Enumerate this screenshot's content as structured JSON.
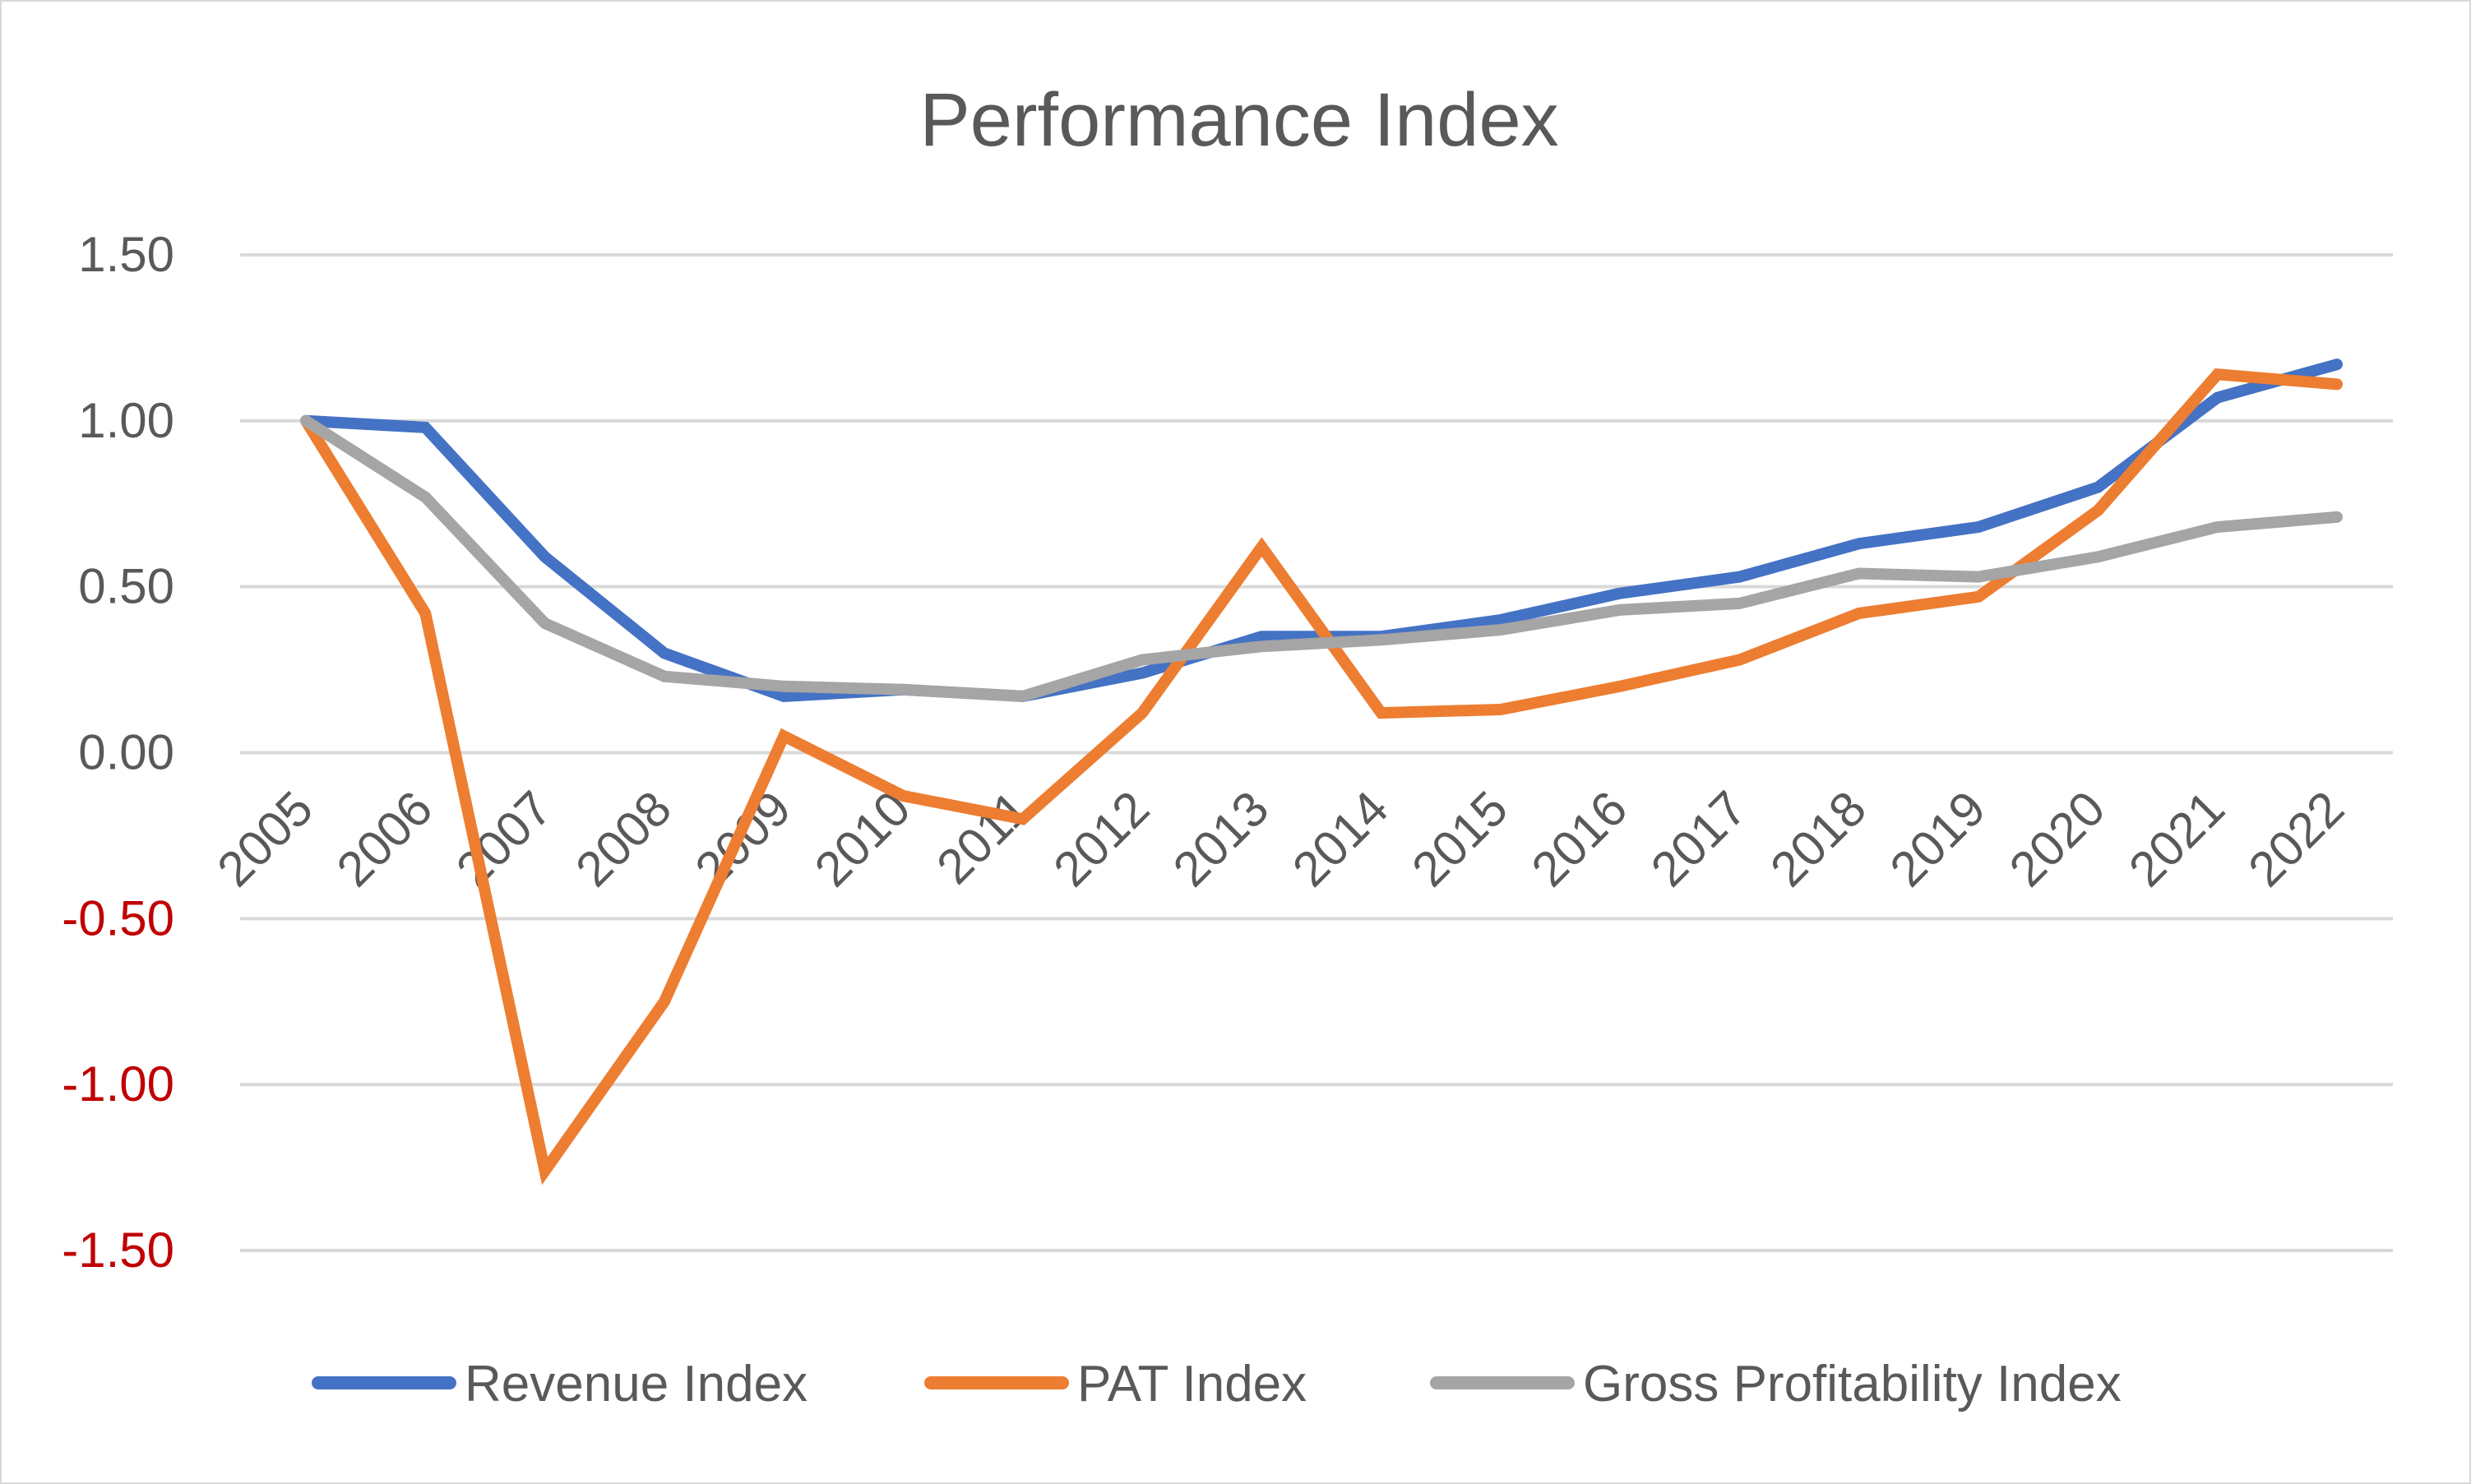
{
  "chart_data": {
    "type": "line",
    "title": "Performance Index",
    "xlabel": "",
    "ylabel": "",
    "categories": [
      "2005",
      "2006",
      "2007",
      "2008",
      "2009",
      "2010",
      "2011",
      "2012",
      "2013",
      "2014",
      "2015",
      "2016",
      "2017",
      "2018",
      "2019",
      "2020",
      "2021",
      "2022"
    ],
    "ylim": [
      -1.5,
      1.5
    ],
    "yticks": [
      1.5,
      1.0,
      0.5,
      0.0,
      -0.5,
      -1.0,
      -1.5
    ],
    "ytick_labels": [
      "1.50",
      "1.00",
      "0.50",
      "0.00",
      "-0.50",
      "-1.00",
      "-1.50"
    ],
    "grid": true,
    "legend_position": "bottom",
    "series": [
      {
        "name": "Revenue Index",
        "color": "#4472c4",
        "values": [
          1.0,
          0.98,
          0.59,
          0.3,
          0.17,
          0.19,
          0.17,
          0.24,
          0.35,
          0.35,
          0.4,
          0.48,
          0.53,
          0.63,
          0.68,
          0.8,
          1.07,
          1.17
        ]
      },
      {
        "name": "PAT Index",
        "color": "#ed7d31",
        "values": [
          1.0,
          0.42,
          -1.26,
          -0.75,
          0.05,
          -0.13,
          -0.2,
          0.12,
          0.62,
          0.12,
          0.13,
          0.2,
          0.28,
          0.42,
          0.47,
          0.73,
          1.14,
          1.11
        ]
      },
      {
        "name": "Gross Profitability Index",
        "color": "#a5a5a5",
        "values": [
          1.0,
          0.77,
          0.39,
          0.23,
          0.2,
          0.19,
          0.17,
          0.28,
          0.32,
          0.34,
          0.37,
          0.43,
          0.45,
          0.54,
          0.53,
          0.59,
          0.68,
          0.71
        ]
      }
    ],
    "colors": {
      "positive_tick": "#595959",
      "negative_tick": "#c00000",
      "grid": "#d9d9d9"
    }
  }
}
